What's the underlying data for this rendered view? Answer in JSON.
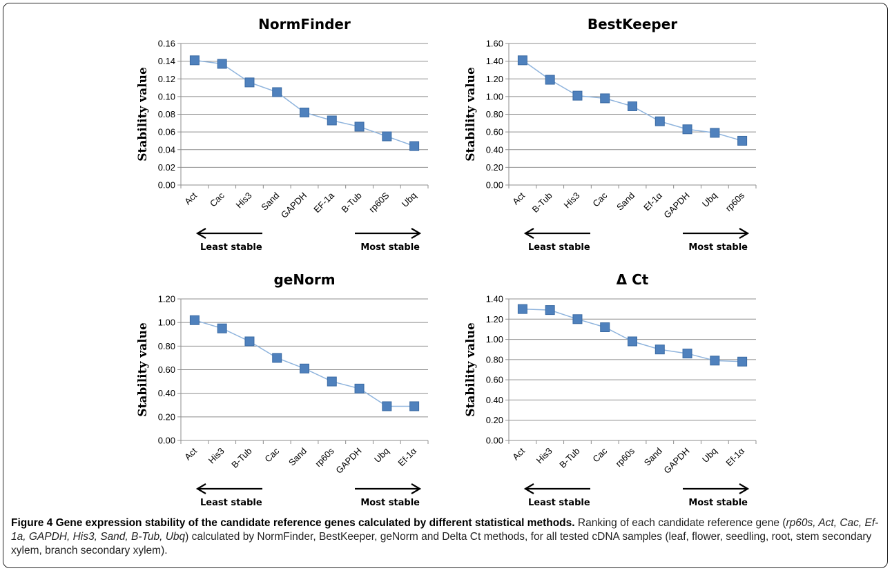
{
  "chart_data": [
    {
      "type": "line",
      "title": "NormFinder",
      "ylabel": "Stability value",
      "categories": [
        "Act",
        "Cac",
        "His3",
        "Sand",
        "GAPDH",
        "EF-1a",
        "B-Tub",
        "rp60S",
        "Ubq"
      ],
      "values": [
        0.141,
        0.137,
        0.116,
        0.105,
        0.082,
        0.073,
        0.066,
        0.055,
        0.044
      ],
      "ylim": [
        0,
        0.16
      ],
      "yticks": [
        "0.00",
        "0.02",
        "0.04",
        "0.06",
        "0.08",
        "0.10",
        "0.12",
        "0.14",
        "0.16"
      ],
      "grid": true,
      "left_annotation": "Least stable",
      "right_annotation": "Most stable"
    },
    {
      "type": "line",
      "title": "BestKeeper",
      "ylabel": "Stability value",
      "categories": [
        "Act",
        "B-Tub",
        "His3",
        "Cac",
        "Sand",
        "Ef-1α",
        "GAPDH",
        "Ubq",
        "rp60s"
      ],
      "values": [
        1.41,
        1.19,
        1.01,
        0.98,
        0.89,
        0.72,
        0.63,
        0.59,
        0.5
      ],
      "ylim": [
        0,
        1.6
      ],
      "yticks": [
        "0.00",
        "0.20",
        "0.40",
        "0.60",
        "0.80",
        "1.00",
        "1.20",
        "1.40",
        "1.60"
      ],
      "grid": true,
      "left_annotation": "Least stable",
      "right_annotation": "Most stable"
    },
    {
      "type": "line",
      "title": "geNorm",
      "ylabel": "Stability value",
      "categories": [
        "Act",
        "His3",
        "B-Tub",
        "Cac",
        "Sand",
        "rp60s",
        "GAPDH",
        "Ubq",
        "Ef-1α"
      ],
      "values": [
        1.02,
        0.95,
        0.84,
        0.7,
        0.61,
        0.5,
        0.44,
        0.29,
        0.29
      ],
      "ylim": [
        0,
        1.2
      ],
      "yticks": [
        "0.00",
        "0.20",
        "0.40",
        "0.60",
        "0.80",
        "1.00",
        "1.20"
      ],
      "grid": true,
      "left_annotation": "Least stable",
      "right_annotation": "Most stable"
    },
    {
      "type": "line",
      "title": "Δ Ct",
      "ylabel": "Stability value",
      "categories": [
        "Act",
        "His3",
        "B-Tub",
        "Cac",
        "rp60s",
        "Sand",
        "GAPDH",
        "Ubq",
        "Ef-1α"
      ],
      "values": [
        1.3,
        1.29,
        1.2,
        1.12,
        0.98,
        0.9,
        0.86,
        0.79,
        0.78
      ],
      "ylim": [
        0,
        1.4
      ],
      "yticks": [
        "0.00",
        "0.20",
        "0.40",
        "0.60",
        "0.80",
        "1.00",
        "1.20",
        "1.40"
      ],
      "grid": true,
      "left_annotation": "Least stable",
      "right_annotation": "Most stable"
    }
  ],
  "caption": {
    "bold": "Figure 4 Gene expression stability of the candidate reference genes calculated by different statistical methods.",
    "part1": " Ranking of each candidate reference gene (",
    "italic": "rp60s, Act, Cac, Ef-1a, GAPDH, His3, Sand, B-Tub, Ubq",
    "part2": ") calculated by NormFinder, BestKeeper, geNorm and Delta Ct methods, for all tested cDNA samples (leaf, flower, seedling, root, stem secondary xylem, branch secondary xylem)."
  }
}
